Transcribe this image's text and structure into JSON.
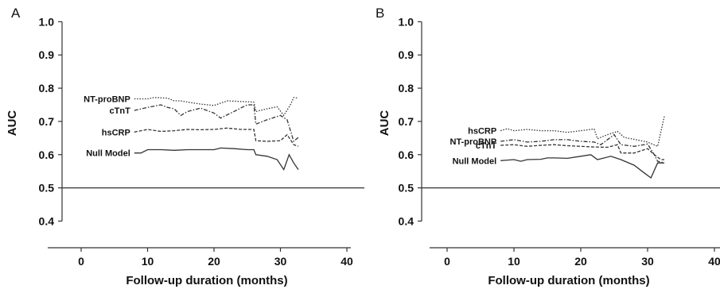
{
  "chart_data": [
    {
      "type": "line",
      "panel_label": "A",
      "xlabel": "Follow-up duration (months)",
      "ylabel": "AUC",
      "xlim": [
        -4,
        40
      ],
      "ylim": [
        0.37,
        1.02
      ],
      "x_ticks": [
        0,
        10,
        20,
        30,
        40
      ],
      "y_ticks": [
        "0.4",
        "0.5",
        "0.6",
        "0.7",
        "0.8",
        "0.9",
        "1.0"
      ],
      "grid": false,
      "reference_line": {
        "y": 0.5
      },
      "series": [
        {
          "name": "NT-proBNP",
          "style": "dotted",
          "label_position": "left",
          "points": [
            [
              8,
              0.768
            ],
            [
              10,
              0.768
            ],
            [
              11,
              0.772
            ],
            [
              13,
              0.77
            ],
            [
              14,
              0.762
            ],
            [
              15,
              0.762
            ],
            [
              16,
              0.758
            ],
            [
              18,
              0.752
            ],
            [
              20,
              0.748
            ],
            [
              22,
              0.762
            ],
            [
              24,
              0.76
            ],
            [
              26,
              0.758
            ],
            [
              26.3,
              0.73
            ],
            [
              28,
              0.738
            ],
            [
              29.5,
              0.744
            ],
            [
              30.5,
              0.718
            ],
            [
              31.5,
              0.75
            ],
            [
              32,
              0.772
            ],
            [
              32.7,
              0.77
            ]
          ]
        },
        {
          "name": "cTnT",
          "style": "dash-dot",
          "label_position": "left",
          "points": [
            [
              8,
              0.733
            ],
            [
              10,
              0.742
            ],
            [
              12,
              0.75
            ],
            [
              13,
              0.742
            ],
            [
              14,
              0.738
            ],
            [
              15,
              0.718
            ],
            [
              16,
              0.73
            ],
            [
              18,
              0.74
            ],
            [
              20,
              0.725
            ],
            [
              21,
              0.71
            ],
            [
              23,
              0.73
            ],
            [
              25,
              0.75
            ],
            [
              26,
              0.75
            ],
            [
              26.3,
              0.692
            ],
            [
              28,
              0.705
            ],
            [
              30,
              0.718
            ],
            [
              31,
              0.705
            ],
            [
              32,
              0.64
            ],
            [
              32.7,
              0.652
            ]
          ]
        },
        {
          "name": "hsCRP",
          "style": "dashed",
          "label_position": "left",
          "points": [
            [
              8,
              0.668
            ],
            [
              10,
              0.676
            ],
            [
              12,
              0.67
            ],
            [
              14,
              0.672
            ],
            [
              16,
              0.676
            ],
            [
              18,
              0.675
            ],
            [
              20,
              0.676
            ],
            [
              22,
              0.68
            ],
            [
              24,
              0.676
            ],
            [
              26,
              0.676
            ],
            [
              26.3,
              0.642
            ],
            [
              28,
              0.64
            ],
            [
              30,
              0.642
            ],
            [
              31,
              0.66
            ],
            [
              32,
              0.63
            ],
            [
              32.7,
              0.625
            ]
          ]
        },
        {
          "name": "Null Model",
          "style": "solid",
          "label_position": "left",
          "points": [
            [
              8,
              0.605
            ],
            [
              9,
              0.605
            ],
            [
              10,
              0.615
            ],
            [
              12,
              0.615
            ],
            [
              14,
              0.613
            ],
            [
              16,
              0.615
            ],
            [
              18,
              0.615
            ],
            [
              20,
              0.615
            ],
            [
              21,
              0.62
            ],
            [
              23,
              0.618
            ],
            [
              25,
              0.615
            ],
            [
              26,
              0.615
            ],
            [
              26.3,
              0.6
            ],
            [
              28,
              0.595
            ],
            [
              29.5,
              0.585
            ],
            [
              30.5,
              0.555
            ],
            [
              31.3,
              0.6
            ],
            [
              32,
              0.575
            ],
            [
              32.7,
              0.555
            ]
          ]
        }
      ]
    },
    {
      "type": "line",
      "panel_label": "B",
      "xlabel": "Follow-up duration (months)",
      "ylabel": "AUC",
      "xlim": [
        -4,
        40
      ],
      "ylim": [
        0.37,
        1.02
      ],
      "x_ticks": [
        0,
        10,
        20,
        30,
        40
      ],
      "y_ticks": [
        "0.4",
        "0.5",
        "0.6",
        "0.7",
        "0.8",
        "0.9",
        "1.0"
      ],
      "grid": false,
      "reference_line": {
        "y": 0.5
      },
      "series": [
        {
          "name": "hsCRP",
          "style": "dotted",
          "label_position": "left",
          "points": [
            [
              8,
              0.672
            ],
            [
              9,
              0.678
            ],
            [
              10,
              0.672
            ],
            [
              12,
              0.676
            ],
            [
              14,
              0.672
            ],
            [
              16,
              0.672
            ],
            [
              18,
              0.667
            ],
            [
              20,
              0.672
            ],
            [
              22,
              0.677
            ],
            [
              22.5,
              0.648
            ],
            [
              24,
              0.66
            ],
            [
              25.5,
              0.67
            ],
            [
              26.5,
              0.652
            ],
            [
              28,
              0.646
            ],
            [
              30,
              0.638
            ],
            [
              31.5,
              0.625
            ],
            [
              32.5,
              0.715
            ]
          ]
        },
        {
          "name": "NT-proBNP",
          "style": "dash-dot",
          "label_position": "left",
          "points": [
            [
              8,
              0.64
            ],
            [
              10,
              0.645
            ],
            [
              12,
              0.638
            ],
            [
              14,
              0.64
            ],
            [
              16,
              0.645
            ],
            [
              18,
              0.645
            ],
            [
              20,
              0.64
            ],
            [
              22,
              0.638
            ],
            [
              23,
              0.63
            ],
            [
              25,
              0.66
            ],
            [
              26,
              0.63
            ],
            [
              28,
              0.625
            ],
            [
              30,
              0.632
            ],
            [
              31,
              0.6
            ],
            [
              31.5,
              0.58
            ],
            [
              32.5,
              0.575
            ]
          ]
        },
        {
          "name": "cTnT",
          "style": "dashed",
          "label_position": "left",
          "points": [
            [
              8,
              0.628
            ],
            [
              10,
              0.63
            ],
            [
              12,
              0.625
            ],
            [
              14,
              0.628
            ],
            [
              16,
              0.63
            ],
            [
              18,
              0.627
            ],
            [
              20,
              0.625
            ],
            [
              22,
              0.623
            ],
            [
              24,
              0.622
            ],
            [
              25.5,
              0.63
            ],
            [
              26,
              0.605
            ],
            [
              28,
              0.605
            ],
            [
              30,
              0.618
            ],
            [
              31,
              0.6
            ],
            [
              32,
              0.585
            ],
            [
              32.5,
              0.585
            ]
          ]
        },
        {
          "name": "Null Model",
          "style": "solid",
          "label_position": "left",
          "points": [
            [
              8,
              0.582
            ],
            [
              10,
              0.585
            ],
            [
              11,
              0.58
            ],
            [
              12,
              0.585
            ],
            [
              14,
              0.586
            ],
            [
              15,
              0.59
            ],
            [
              16,
              0.59
            ],
            [
              18,
              0.589
            ],
            [
              20,
              0.595
            ],
            [
              21.5,
              0.6
            ],
            [
              22.5,
              0.585
            ],
            [
              24.5,
              0.595
            ],
            [
              26,
              0.585
            ],
            [
              28,
              0.568
            ],
            [
              29.5,
              0.545
            ],
            [
              30.5,
              0.53
            ],
            [
              31.5,
              0.575
            ],
            [
              32.5,
              0.575
            ]
          ]
        }
      ]
    }
  ]
}
